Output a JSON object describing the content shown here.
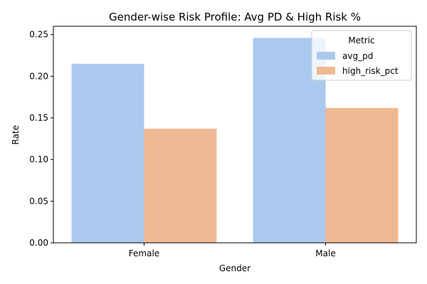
{
  "chart_data": {
    "type": "bar",
    "title": "Gender-wise Risk Profile: Avg PD & High Risk %",
    "xlabel": "Gender",
    "ylabel": "Rate",
    "categories": [
      "Female",
      "Male"
    ],
    "series": [
      {
        "name": "avg_pd",
        "values": [
          0.215,
          0.246
        ],
        "color": "#abc9ee"
      },
      {
        "name": "high_risk_pct",
        "values": [
          0.137,
          0.162
        ],
        "color": "#f0b892"
      }
    ],
    "ylim": [
      0,
      0.26
    ],
    "yticks": [
      0.0,
      0.05,
      0.1,
      0.15,
      0.2,
      0.25
    ],
    "ytick_labels": [
      "0.00",
      "0.05",
      "0.10",
      "0.15",
      "0.20",
      "0.25"
    ],
    "legend": {
      "title": "Metric",
      "placement": "top-right"
    },
    "grid": false
  }
}
